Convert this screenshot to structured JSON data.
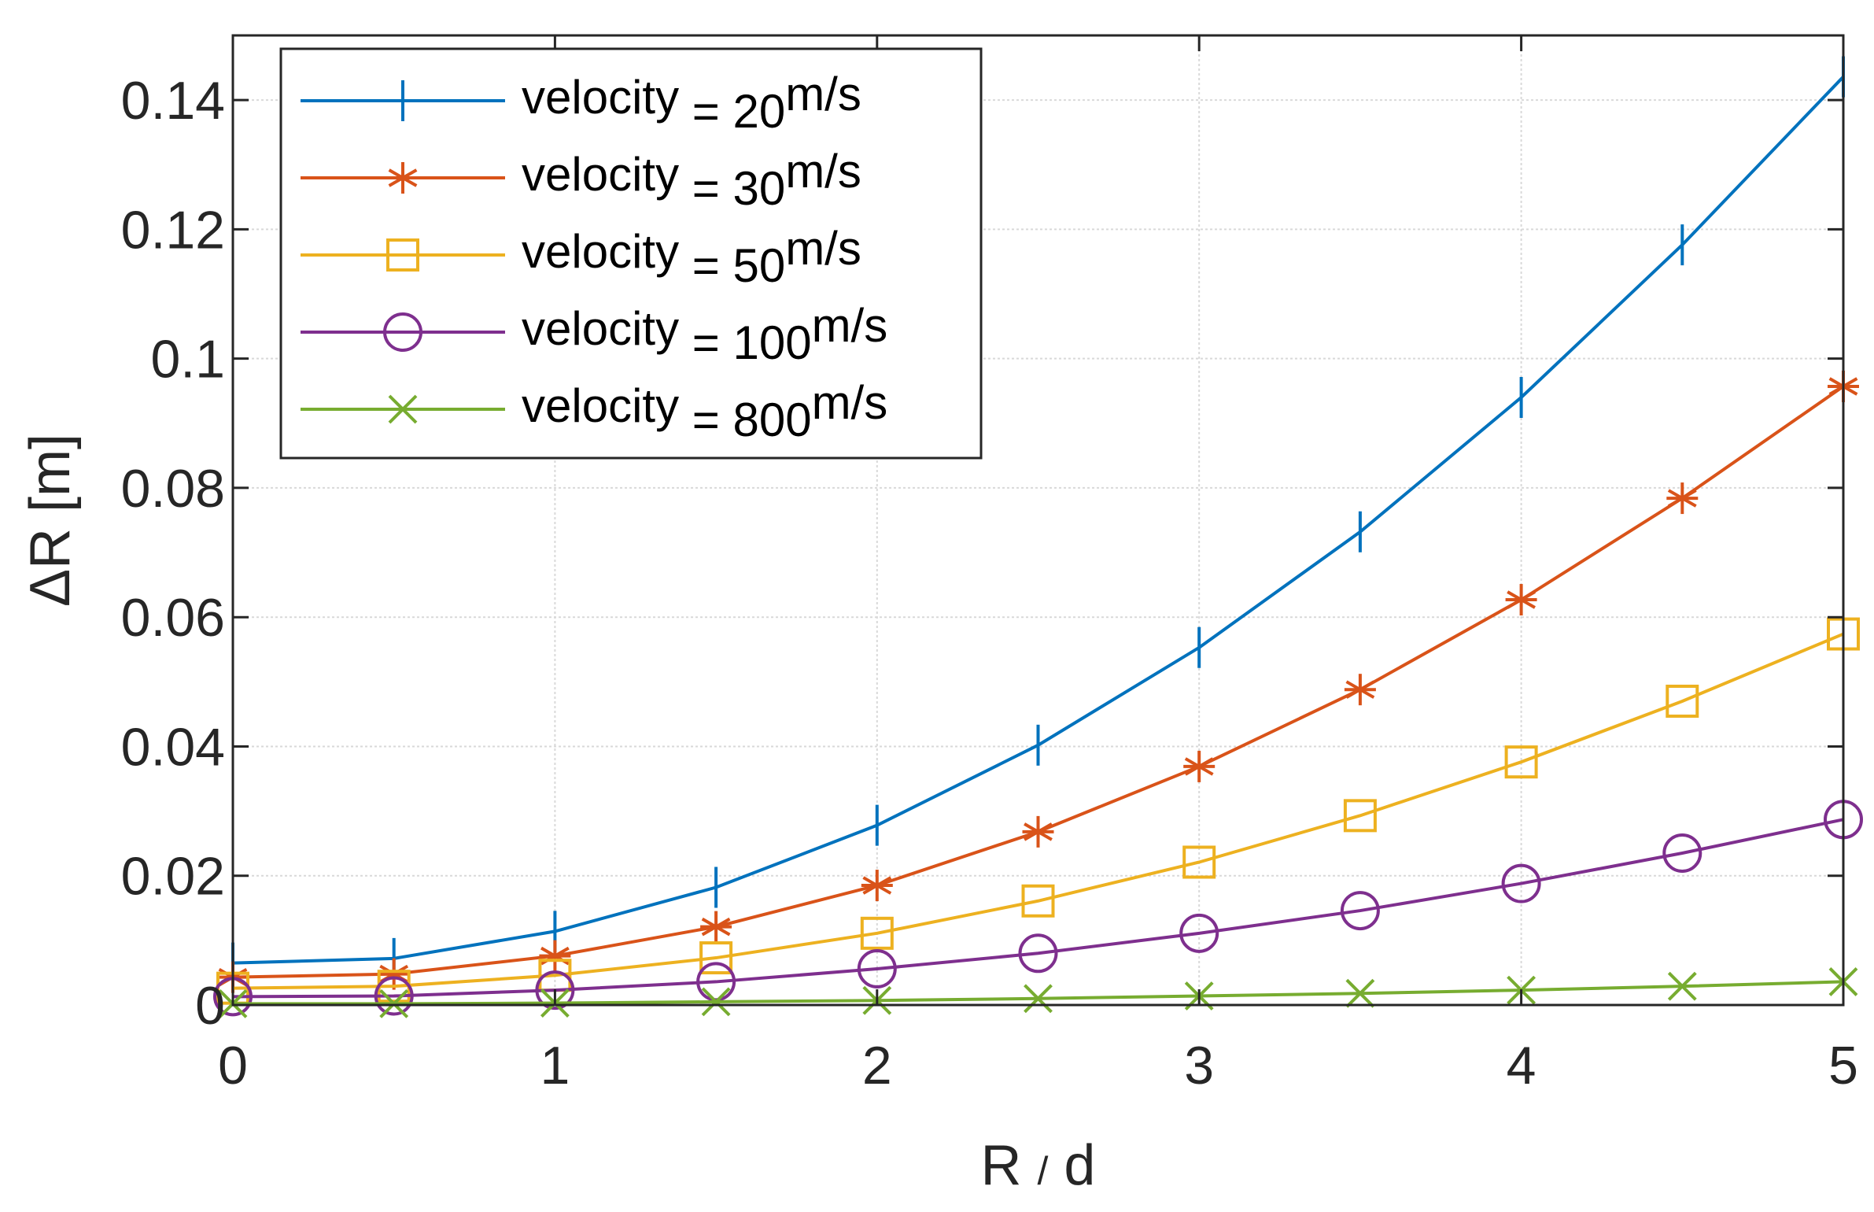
{
  "chart_data": {
    "type": "line",
    "title": "",
    "xlabel": "R / d",
    "xlabel_parts": [
      "R",
      "/",
      "d"
    ],
    "ylabel": "ΔR [m]",
    "xlim": [
      0,
      5
    ],
    "ylim": [
      0,
      0.15
    ],
    "grid": true,
    "legend_position": "top-left",
    "x_ticks": [
      "0",
      "1",
      "2",
      "3",
      "4",
      "5"
    ],
    "y_ticks": [
      "0",
      "0.02",
      "0.04",
      "0.06",
      "0.08",
      "0.1",
      "0.12",
      "0.14"
    ],
    "x_tick_values": [
      0,
      1,
      2,
      3,
      4,
      5
    ],
    "y_tick_values": [
      0,
      0.02,
      0.04,
      0.06,
      0.08,
      0.1,
      0.12,
      0.14
    ],
    "x": [
      0,
      0.5,
      1,
      1.5,
      2,
      2.5,
      3,
      3.5,
      4,
      4.5,
      5
    ],
    "series": [
      {
        "name": "velocity = 20m/s",
        "legend_prefix": "velocity",
        "legend_eq": "= 20",
        "legend_unit": "m/s",
        "color": "#0072BD",
        "marker": "vline",
        "values": [
          0.0065,
          0.0072,
          0.0114,
          0.0182,
          0.0278,
          0.0402,
          0.0553,
          0.0732,
          0.094,
          0.1176,
          0.1436
        ]
      },
      {
        "name": "velocity = 30m/s",
        "legend_prefix": "velocity",
        "legend_eq": "= 30",
        "legend_unit": "m/s",
        "color": "#D95319",
        "marker": "asterisk",
        "values": [
          0.0043,
          0.0048,
          0.0076,
          0.0121,
          0.0185,
          0.0268,
          0.0369,
          0.0488,
          0.0627,
          0.0784,
          0.0957
        ]
      },
      {
        "name": "velocity = 50m/s",
        "legend_prefix": "velocity",
        "legend_eq": "= 50",
        "legend_unit": "m/s",
        "color": "#EDB120",
        "marker": "square",
        "values": [
          0.0026,
          0.0029,
          0.0046,
          0.0073,
          0.0111,
          0.0161,
          0.0221,
          0.0293,
          0.0376,
          0.047,
          0.0574
        ]
      },
      {
        "name": "velocity = 100m/s",
        "legend_prefix": "velocity",
        "legend_eq": "= 100",
        "legend_unit": "m/s",
        "color": "#7E2F8E",
        "marker": "circle",
        "values": [
          0.0013,
          0.0014,
          0.0023,
          0.0036,
          0.0056,
          0.008,
          0.0111,
          0.0146,
          0.0188,
          0.0235,
          0.0287
        ]
      },
      {
        "name": "velocity = 800m/s",
        "legend_prefix": "velocity",
        "legend_eq": "= 800",
        "legend_unit": "m/s",
        "color": "#77AC30",
        "marker": "x",
        "values": [
          0.0002,
          0.0002,
          0.0003,
          0.0005,
          0.0007,
          0.001,
          0.0014,
          0.0018,
          0.0023,
          0.0029,
          0.0036
        ]
      }
    ]
  }
}
